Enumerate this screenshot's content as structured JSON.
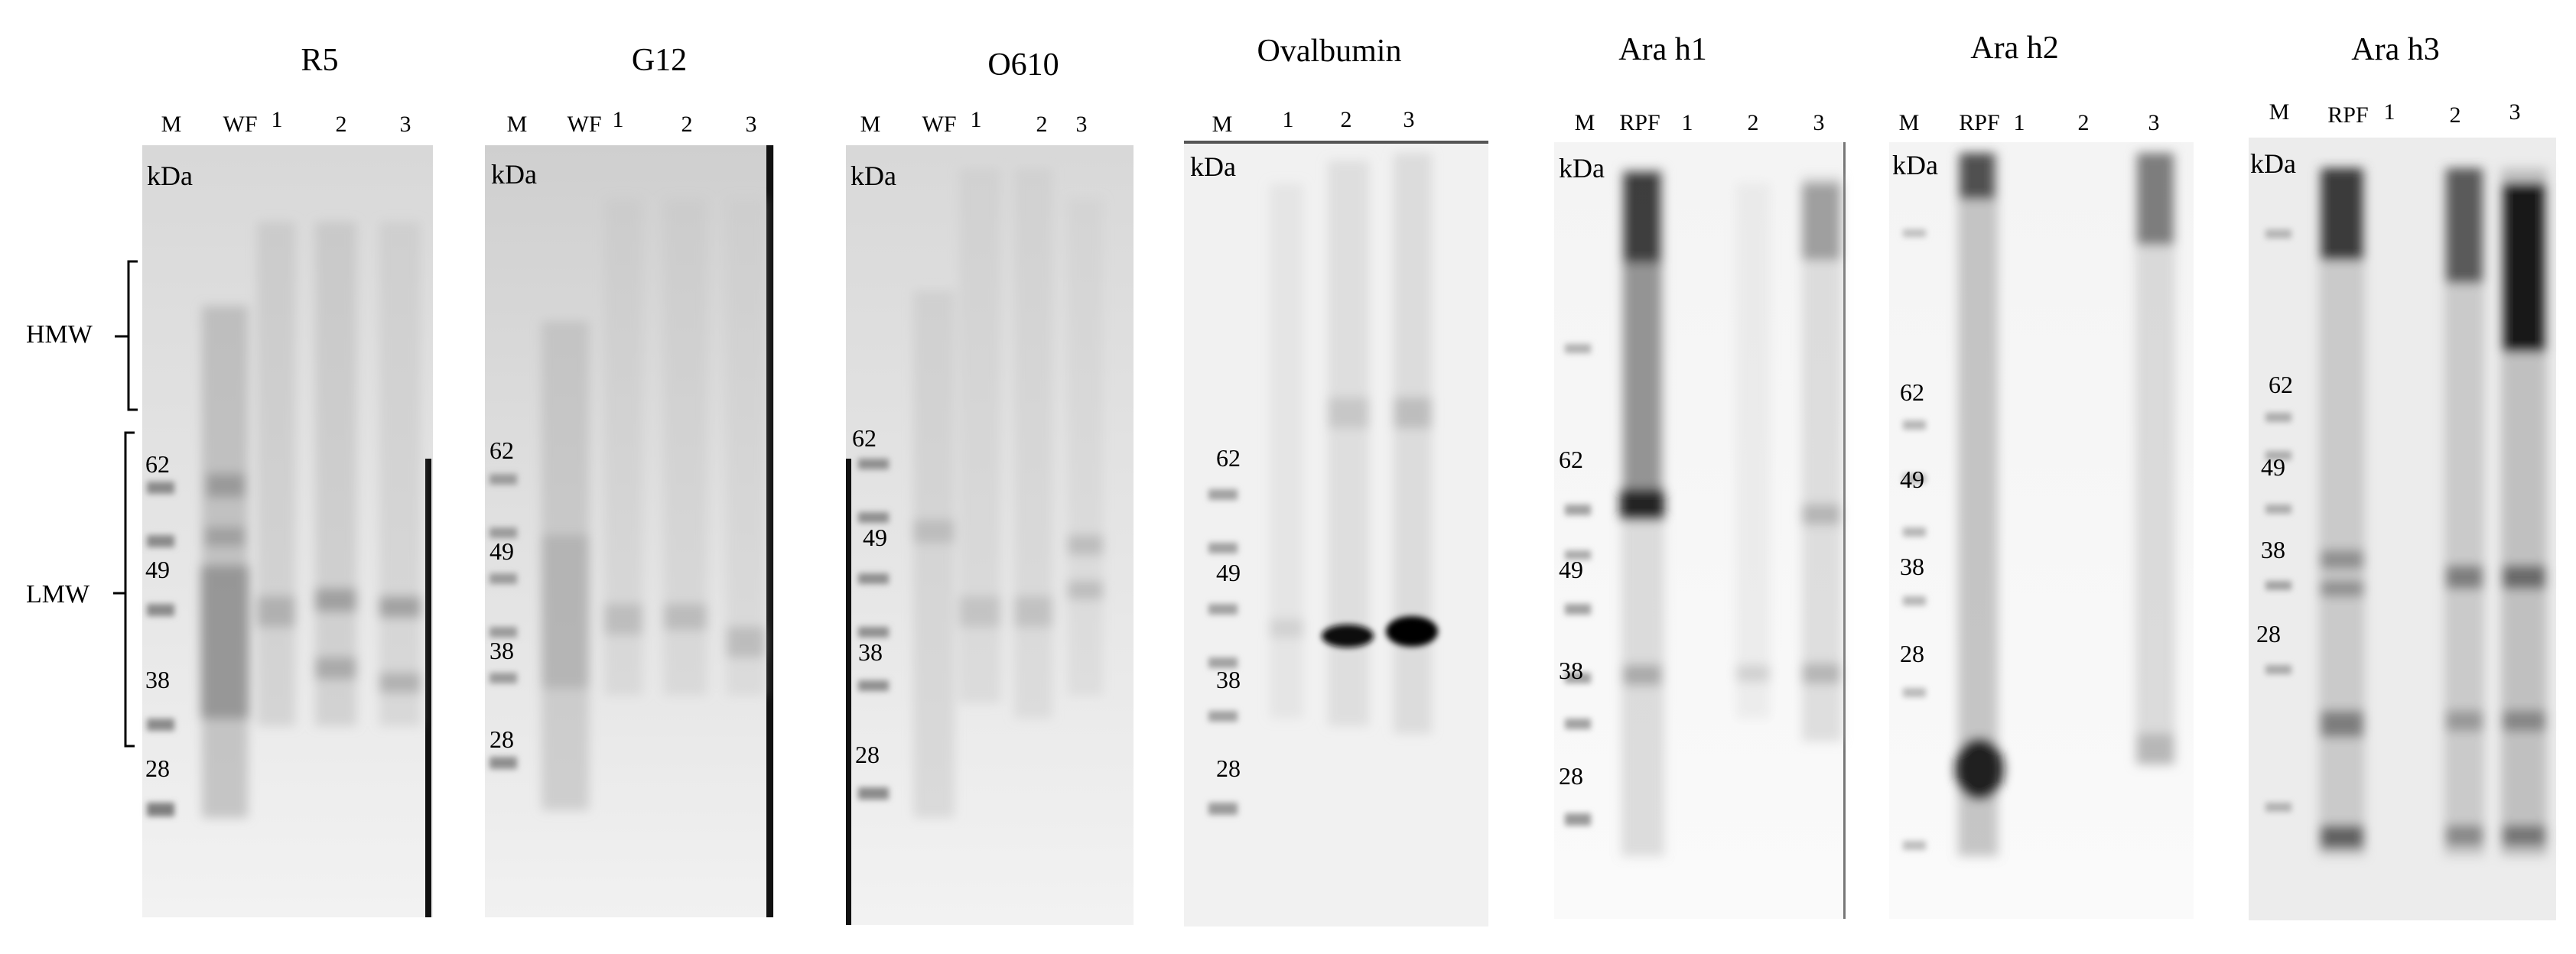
{
  "region_labels": [
    {
      "id": "hmw",
      "label": "HMW"
    },
    {
      "id": "lmw",
      "label": "LMW"
    }
  ],
  "blots": [
    {
      "id": "r5",
      "title": "R5",
      "lanes": [
        "M",
        "WF",
        "1",
        "2",
        "3"
      ],
      "unit": "kDa",
      "markers": [
        "62",
        "49",
        "38",
        "28"
      ]
    },
    {
      "id": "g12",
      "title": "G12",
      "lanes": [
        "M",
        "WF",
        "1",
        "2",
        "3"
      ],
      "unit": "kDa",
      "markers": [
        "62",
        "49",
        "38",
        "28"
      ]
    },
    {
      "id": "o610",
      "title": "O610",
      "lanes": [
        "M",
        "WF",
        "1",
        "2",
        "3"
      ],
      "unit": "kDa",
      "markers": [
        "62",
        "49",
        "38",
        "28"
      ]
    },
    {
      "id": "ovalbumin",
      "title": "Ovalbumin",
      "lanes": [
        "M",
        "1",
        "2",
        "3"
      ],
      "unit": "kDa",
      "markers": [
        "62",
        "49",
        "38",
        "28"
      ]
    },
    {
      "id": "arah1",
      "title": "Ara h1",
      "lanes": [
        "M",
        "RPF",
        "1",
        "2",
        "3"
      ],
      "unit": "kDa",
      "markers": [
        "62",
        "49",
        "38",
        "28"
      ]
    },
    {
      "id": "arah2",
      "title": "Ara h2",
      "lanes": [
        "M",
        "RPF",
        "1",
        "2",
        "3"
      ],
      "unit": "kDa",
      "markers": [
        "62",
        "49",
        "38",
        "28"
      ]
    },
    {
      "id": "arah3",
      "title": "Ara h3",
      "lanes": [
        "M",
        "RPF",
        "1",
        "2",
        "3"
      ],
      "unit": "kDa",
      "markers": [
        "62",
        "49",
        "38",
        "28"
      ]
    }
  ]
}
